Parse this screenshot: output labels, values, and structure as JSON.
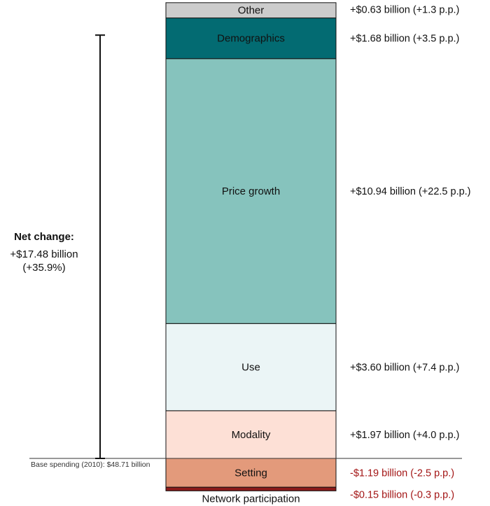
{
  "chart_data": {
    "type": "bar",
    "subtype": "stacked-decomposition",
    "unit": "billion",
    "base": {
      "label": "Base spending (2010): $48.71 billion",
      "value": 48.71
    },
    "net_change": {
      "title": "Net change:",
      "line1": "+$17.48 billion",
      "line2": "(+35.9%)",
      "value": 17.48,
      "percent": 35.9
    },
    "components": [
      {
        "name": "Network participation",
        "value": -0.15,
        "pp": -0.3,
        "color": "#8b1a1a",
        "label_color": "#a31515",
        "label": "-$0.15 billion (-0.3 p.p.)"
      },
      {
        "name": "Setting",
        "value": -1.19,
        "pp": -2.5,
        "color": "#e39a7b",
        "label_color": "#a31515",
        "label": "-$1.19 billion (-2.5 p.p.)"
      },
      {
        "name": "Modality",
        "value": 1.97,
        "pp": 4.0,
        "color": "#fde0d6",
        "label_color": "#111111",
        "label": "+$1.97 billion (+4.0 p.p.)"
      },
      {
        "name": "Use",
        "value": 3.6,
        "pp": 7.4,
        "color": "#ebf5f6",
        "label_color": "#111111",
        "label": "+$3.60 billion (+7.4 p.p.)"
      },
      {
        "name": "Price growth",
        "value": 10.94,
        "pp": 22.5,
        "color": "#86c3bd",
        "label_color": "#111111",
        "label": "+$10.94 billion (+22.5 p.p.)"
      },
      {
        "name": "Demographics",
        "value": 1.68,
        "pp": 3.5,
        "color": "#036b72",
        "label_color": "#111111",
        "label": "+$1.68 billion (+3.5 p.p.)"
      },
      {
        "name": "Other",
        "value": 0.63,
        "pp": 1.3,
        "color": "#cccccc",
        "label_color": "#111111",
        "label": "+$0.63 billion (+1.3 p.p.)"
      }
    ]
  }
}
